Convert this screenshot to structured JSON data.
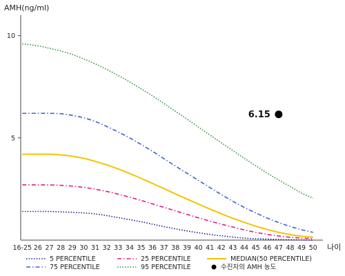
{
  "chart_data": {
    "type": "line",
    "ylabel": "AMH(ng/ml)",
    "xlabel": "나이",
    "ylim": [
      0,
      11
    ],
    "yticks": [
      5,
      10
    ],
    "categories": [
      "16-25",
      "26",
      "27",
      "28",
      "29",
      "30",
      "31",
      "32",
      "33",
      "34",
      "35",
      "36",
      "37",
      "38",
      "39",
      "40",
      "41",
      "42",
      "43",
      "44",
      "45",
      "46",
      "47",
      "48",
      "49",
      "50"
    ],
    "series": [
      {
        "name": "5 PERCENTILE",
        "color": "#1a1a8c",
        "dash": "dot",
        "values": [
          1.4,
          1.4,
          1.4,
          1.38,
          1.36,
          1.33,
          1.28,
          1.2,
          1.1,
          1.0,
          0.9,
          0.78,
          0.66,
          0.55,
          0.45,
          0.36,
          0.28,
          0.21,
          0.15,
          0.1,
          0.07,
          0.05,
          0.03,
          0.02,
          0.01,
          0.0
        ]
      },
      {
        "name": "25 PERCENTILE",
        "color": "#e0197f",
        "dash": "dashdot",
        "values": [
          2.7,
          2.7,
          2.7,
          2.68,
          2.64,
          2.58,
          2.49,
          2.38,
          2.25,
          2.1,
          1.94,
          1.77,
          1.6,
          1.43,
          1.26,
          1.09,
          0.93,
          0.78,
          0.64,
          0.5,
          0.38,
          0.28,
          0.2,
          0.14,
          0.1,
          0.07
        ]
      },
      {
        "name": "MEDIAN(50 PERCENTILE)",
        "color": "#f2c400",
        "dash": "solid",
        "values": [
          4.2,
          4.2,
          4.2,
          4.17,
          4.1,
          4.0,
          3.85,
          3.68,
          3.48,
          3.26,
          3.02,
          2.77,
          2.52,
          2.26,
          2.01,
          1.76,
          1.52,
          1.29,
          1.07,
          0.87,
          0.68,
          0.52,
          0.38,
          0.27,
          0.19,
          0.14
        ]
      },
      {
        "name": "75 PERCENTILE",
        "color": "#3b62c9",
        "dash": "dashdot",
        "values": [
          6.2,
          6.2,
          6.2,
          6.18,
          6.1,
          5.98,
          5.8,
          5.56,
          5.29,
          5.0,
          4.68,
          4.34,
          3.98,
          3.62,
          3.27,
          2.92,
          2.57,
          2.23,
          1.9,
          1.6,
          1.33,
          1.08,
          0.86,
          0.67,
          0.51,
          0.38
        ]
      },
      {
        "name": "95 PERCENTILE",
        "color": "#2e8a3c",
        "dash": "dot",
        "values": [
          9.6,
          9.5,
          9.38,
          9.25,
          9.08,
          8.86,
          8.62,
          8.35,
          8.05,
          7.74,
          7.4,
          7.05,
          6.68,
          6.3,
          5.92,
          5.53,
          5.14,
          4.76,
          4.38,
          4.0,
          3.64,
          3.28,
          2.94,
          2.62,
          2.3,
          2.05
        ]
      }
    ],
    "points": [
      {
        "name": "수진자의 AMH 농도",
        "x": "47",
        "y": 6.15,
        "label": "6.15",
        "color": "#000000"
      }
    ]
  }
}
